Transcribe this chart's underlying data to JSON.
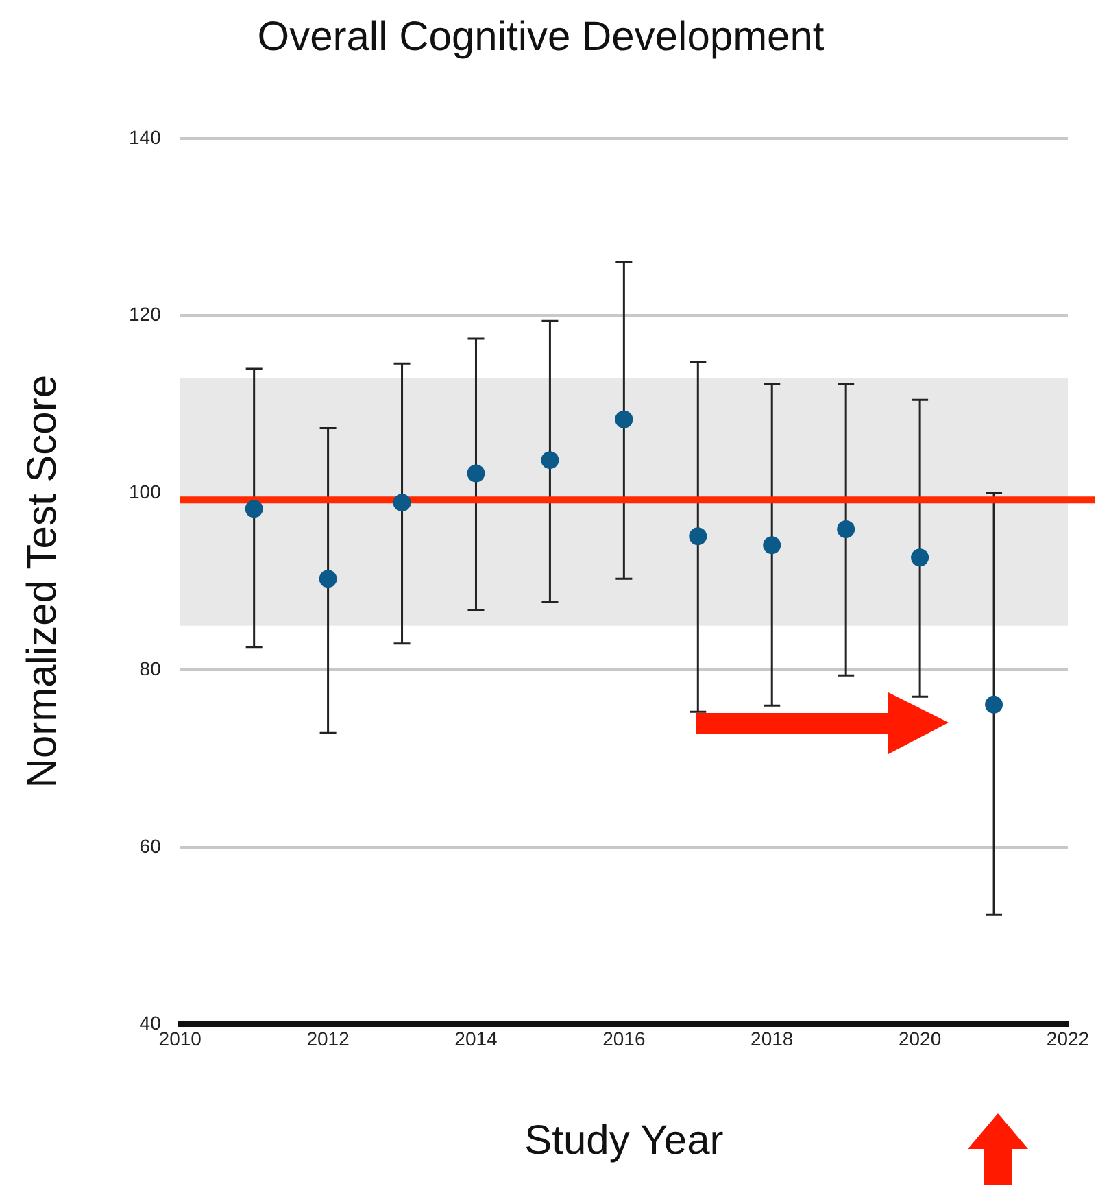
{
  "chart_data": {
    "type": "scatter",
    "title": "Overall Cognitive Development",
    "xlabel": "Study Year",
    "ylabel": "Normalized Test Score",
    "x": [
      2011,
      2012,
      2013,
      2014,
      2015,
      2016,
      2017,
      2018,
      2019,
      2020,
      2021
    ],
    "series": [
      {
        "color": "#0b5a8a",
        "values": [
          98.2,
          90.3,
          98.9,
          102.2,
          103.7,
          108.3,
          95.1,
          94.1,
          95.9,
          92.7,
          76.1
        ],
        "errors": [
          [
            82.6,
            114
          ],
          [
            72.9,
            107.3
          ],
          [
            83,
            114.6
          ],
          [
            86.8,
            117.4
          ],
          [
            87.7,
            119.4
          ],
          [
            90.3,
            126.1
          ],
          [
            75.3,
            114.8
          ],
          [
            76,
            112.3
          ],
          [
            79.4,
            112.3
          ],
          [
            77,
            110.5
          ],
          [
            52.4,
            100
          ]
        ]
      }
    ],
    "xlim": [
      2010,
      2022
    ],
    "xticks": [
      2010,
      2012,
      2014,
      2016,
      2018,
      2020,
      2022
    ],
    "ylim": [
      40,
      140
    ],
    "yticks": [
      40,
      60,
      80,
      100,
      120,
      140
    ],
    "grid": "y",
    "legend": false,
    "marker": "circle",
    "ref_lines": [
      {
        "axis": "y",
        "value": 99.2,
        "color": "#ff2a00"
      }
    ],
    "bands": [
      {
        "axis": "y",
        "from": 85,
        "to": 113,
        "color": "#e8e8e8"
      }
    ]
  }
}
